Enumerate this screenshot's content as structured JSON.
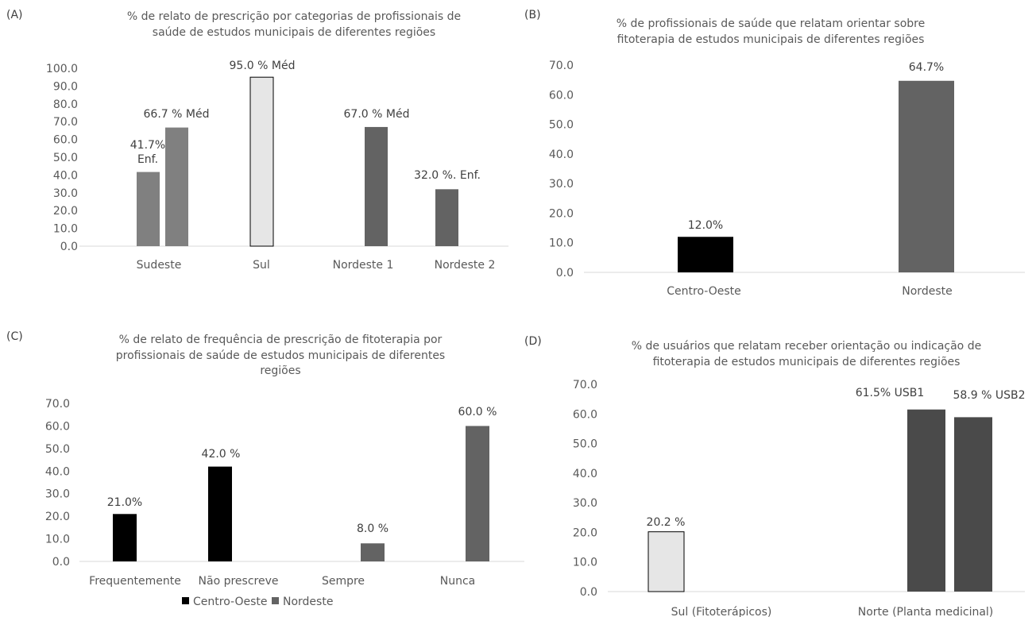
{
  "chart_data": [
    {
      "panel": "(A)",
      "type": "bar",
      "title": [
        "% de relato de prescrição por categorias de profissionais de",
        "saúde de estudos municipais de diferentes regiões"
      ],
      "categories": [
        "Sudeste",
        "Sul",
        "Nordeste 1",
        "Nordeste 2"
      ],
      "ylim": [
        0,
        100
      ],
      "yticks": [
        "100.0",
        "90.0",
        "80.0",
        "70.0",
        "60.0",
        "50.0",
        "40.0",
        "30.0",
        "20.0",
        "10.0",
        "0.0"
      ],
      "bars": [
        {
          "category": "Sudeste",
          "value": 41.7,
          "label": [
            "41.7%",
            "Enf."
          ],
          "color": "#808080"
        },
        {
          "category": "Sudeste",
          "value": 66.7,
          "label": [
            "66.7 % Méd"
          ],
          "color": "#808080"
        },
        {
          "category": "Sul",
          "value": 95.0,
          "label": [
            "95.0 % Méd"
          ],
          "color": "#e6e6e6"
        },
        {
          "category": "Nordeste 1",
          "value": 67.0,
          "label": [
            "67.0 % Méd"
          ],
          "color": "#636363"
        },
        {
          "category": "Nordeste 2",
          "value": 32.0,
          "label": [
            "32.0 %. Enf."
          ],
          "color": "#636363"
        }
      ]
    },
    {
      "panel": "(B)",
      "type": "bar",
      "title": [
        "% de profissionais de saúde que relatam orientar sobre",
        "fitoterapia de estudos municipais de diferentes regiões"
      ],
      "categories": [
        "Centro-Oeste",
        "Nordeste"
      ],
      "ylim": [
        0,
        70
      ],
      "yticks": [
        "70.0",
        "60.0",
        "50.0",
        "40.0",
        "30.0",
        "20.0",
        "10.0",
        "0.0"
      ],
      "bars": [
        {
          "category": "Centro-Oeste",
          "value": 12.0,
          "label": [
            "12.0%"
          ],
          "color": "#000000"
        },
        {
          "category": "Nordeste",
          "value": 64.7,
          "label": [
            "64.7%"
          ],
          "color": "#636363"
        }
      ]
    },
    {
      "panel": "(C)",
      "type": "bar",
      "title": [
        "% de relato de frequência de prescrição de fitoterapia por",
        "profissionais de saúde de estudos municipais de diferentes",
        "regiões"
      ],
      "categories": [
        "Frequentemente",
        "Não prescreve",
        "Sempre",
        "Nunca"
      ],
      "ylim": [
        0,
        70
      ],
      "yticks": [
        "70.0",
        "60.0",
        "50.0",
        "40.0",
        "30.0",
        "20.0",
        "10.0",
        "0.0"
      ],
      "series": [
        {
          "name": "Centro-Oeste",
          "color": "#000000",
          "values": [
            21.0,
            42.0,
            null,
            null
          ]
        },
        {
          "name": "Nordeste",
          "color": "#636363",
          "values": [
            null,
            null,
            8.0,
            60.0
          ]
        }
      ],
      "bars": [
        {
          "category": "Frequentemente",
          "value": 21.0,
          "label": [
            "21.0%"
          ],
          "color": "#000000"
        },
        {
          "category": "Não prescreve",
          "value": 42.0,
          "label": [
            "42.0 %"
          ],
          "color": "#000000"
        },
        {
          "category": "Sempre",
          "value": 8.0,
          "label": [
            "8.0 %"
          ],
          "color": "#636363"
        },
        {
          "category": "Nunca",
          "value": 60.0,
          "label": [
            "60.0 %"
          ],
          "color": "#636363"
        }
      ],
      "legend": [
        {
          "name": "Centro-Oeste",
          "color": "#000000"
        },
        {
          "name": "Nordeste",
          "color": "#636363"
        }
      ],
      "legend_position": "bottom"
    },
    {
      "panel": "(D)",
      "type": "bar",
      "title": [
        "% de usuários que relatam receber orientação ou indicação de",
        "fitoterapia de estudos municipais de diferentes regiões"
      ],
      "categories": [
        "Sul (Fitoterápicos)",
        "Norte (Planta medicinal)"
      ],
      "ylim": [
        0,
        70
      ],
      "yticks": [
        "70.0",
        "60.0",
        "50.0",
        "40.0",
        "30.0",
        "20.0",
        "10.0",
        "0.0"
      ],
      "bars": [
        {
          "category": "Sul (Fitoterápicos)",
          "value": 20.2,
          "label": [
            "20.2 %"
          ],
          "color": "#e6e6e6"
        },
        {
          "category": "Norte (Planta medicinal)",
          "value": 61.5,
          "label": [
            "61.5% USB1"
          ],
          "color": "#4a4a4a"
        },
        {
          "category": "Norte (Planta medicinal)",
          "value": 58.9,
          "label": [
            "58.9 % USB2"
          ],
          "color": "#4a4a4a"
        }
      ]
    }
  ]
}
